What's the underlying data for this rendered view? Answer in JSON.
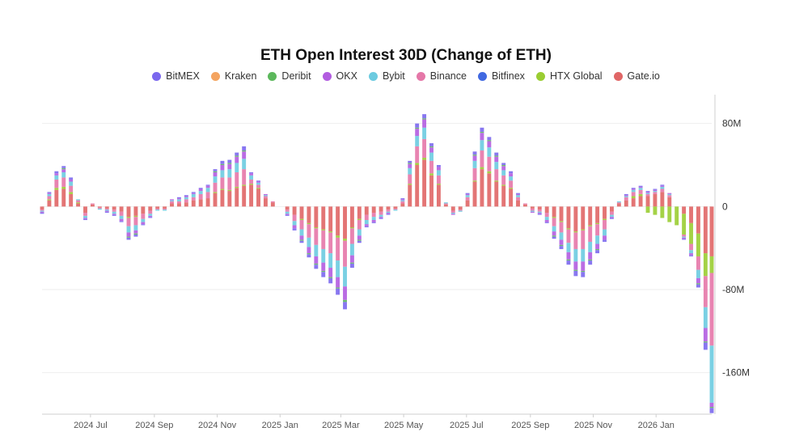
{
  "chart_data": {
    "type": "bar",
    "stacked": true,
    "title": "ETH Open Interest 30D (Change of ETH)",
    "legend_position": "top-center",
    "grid": true,
    "y_axis": {
      "position": "right",
      "ylim": [
        -200000000,
        100000000
      ],
      "ticks": [
        80000000,
        0,
        -80000000,
        -160000000
      ],
      "tick_labels": [
        "80M",
        "0",
        "-80M",
        "-160M"
      ]
    },
    "x_axis": {
      "type": "date",
      "range": [
        "2024-05-15",
        "2026-02-24"
      ],
      "ticks": [
        "2024-07-01",
        "2024-09-01",
        "2024-11-01",
        "2025-01-01",
        "2025-03-01",
        "2025-05-01",
        "2025-07-01",
        "2025-09-01",
        "2025-11-01",
        "2026-01-01"
      ],
      "tick_labels": [
        "2024 Jul",
        "2024 Sep",
        "2024 Nov",
        "2025 Jan",
        "2025 Mar",
        "2025 May",
        "2025 Jul",
        "2025 Sep",
        "2025 Nov",
        "2026 Jan"
      ]
    },
    "series_order": [
      "Gate.io",
      "HTX Global",
      "Bitfinex",
      "Binance",
      "Bybit",
      "OKX",
      "Deribit",
      "Kraken",
      "BitMEX"
    ],
    "legend": [
      "BitMEX",
      "Kraken",
      "Deribit",
      "OKX",
      "Bybit",
      "Binance",
      "Bitfinex",
      "HTX Global",
      "Gate.io"
    ],
    "colors": {
      "BitMEX": "#7b68ee",
      "Kraken": "#f4a460",
      "Deribit": "#5cb85c",
      "OKX": "#b25ce0",
      "Bybit": "#6ccbe0",
      "Binance": "#e577a8",
      "Bitfinex": "#4169e1",
      "HTX Global": "#9acd32",
      "Gate.io": "#e06666"
    },
    "x": [
      "2024-05-15",
      "2024-05-22",
      "2024-05-29",
      "2024-06-05",
      "2024-06-12",
      "2024-06-19",
      "2024-06-26",
      "2024-07-03",
      "2024-07-10",
      "2024-07-17",
      "2024-07-24",
      "2024-07-31",
      "2024-08-07",
      "2024-08-14",
      "2024-08-21",
      "2024-08-28",
      "2024-09-04",
      "2024-09-11",
      "2024-09-18",
      "2024-09-25",
      "2024-10-02",
      "2024-10-09",
      "2024-10-16",
      "2024-10-23",
      "2024-10-30",
      "2024-11-06",
      "2024-11-13",
      "2024-11-20",
      "2024-11-27",
      "2024-12-04",
      "2024-12-11",
      "2024-12-18",
      "2024-12-25",
      "2025-01-01",
      "2025-01-08",
      "2025-01-15",
      "2025-01-22",
      "2025-01-29",
      "2025-02-05",
      "2025-02-12",
      "2025-02-19",
      "2025-02-26",
      "2025-03-05",
      "2025-03-12",
      "2025-03-19",
      "2025-03-26",
      "2025-04-02",
      "2025-04-09",
      "2025-04-16",
      "2025-04-23",
      "2025-04-30",
      "2025-05-07",
      "2025-05-14",
      "2025-05-21",
      "2025-05-28",
      "2025-06-04",
      "2025-06-11",
      "2025-06-18",
      "2025-06-25",
      "2025-07-02",
      "2025-07-09",
      "2025-07-16",
      "2025-07-23",
      "2025-07-30",
      "2025-08-06",
      "2025-08-13",
      "2025-08-20",
      "2025-08-27",
      "2025-09-03",
      "2025-09-10",
      "2025-09-17",
      "2025-09-24",
      "2025-10-01",
      "2025-10-08",
      "2025-10-15",
      "2025-10-22",
      "2025-10-29",
      "2025-11-05",
      "2025-11-12",
      "2025-11-19",
      "2025-11-26",
      "2025-12-03",
      "2025-12-10",
      "2025-12-17",
      "2025-12-24",
      "2025-12-31",
      "2026-01-07",
      "2026-01-14",
      "2026-01-21",
      "2026-01-28",
      "2026-02-04",
      "2026-02-11",
      "2026-02-18",
      "2026-02-24"
    ],
    "series": [
      {
        "name": "Gate.io",
        "values": [
          -3,
          6,
          16,
          17,
          12,
          3,
          -6,
          2,
          -1,
          -2,
          -3,
          -5,
          -10,
          -9,
          -7,
          -4,
          -2,
          -2,
          3,
          3,
          4,
          6,
          7,
          8,
          13,
          16,
          15,
          18,
          20,
          21,
          17,
          8,
          4,
          0,
          -3,
          -8,
          -12,
          -16,
          -20,
          -22,
          -24,
          -28,
          -31,
          -20,
          -12,
          -8,
          -6,
          -5,
          -3,
          -2,
          3,
          21,
          40,
          45,
          30,
          21,
          2,
          -4,
          -3,
          6,
          24,
          36,
          32,
          24,
          20,
          17,
          6,
          2,
          -2,
          -3,
          -6,
          -10,
          -14,
          -21,
          -24,
          -22,
          -18,
          -16,
          -12,
          -5,
          3,
          6,
          8,
          10,
          10,
          12,
          14,
          9,
          0,
          -7,
          -16,
          -26,
          -45,
          -48
        ]
      },
      {
        "name": "HTX Global",
        "values": [
          0,
          1,
          2,
          2,
          2,
          1,
          0,
          0,
          0,
          0,
          0,
          0,
          -1,
          -1,
          0,
          0,
          0,
          0,
          0,
          0,
          0,
          0,
          0,
          0,
          1,
          1,
          1,
          1,
          1,
          1,
          1,
          0,
          0,
          0,
          0,
          0,
          -1,
          -1,
          -1,
          -1,
          -1,
          -2,
          -2,
          -1,
          -1,
          0,
          0,
          0,
          0,
          0,
          0,
          1,
          2,
          2,
          2,
          1,
          0,
          0,
          0,
          0,
          1,
          2,
          2,
          1,
          1,
          1,
          0,
          0,
          0,
          0,
          0,
          -1,
          -1,
          -1,
          -1,
          -1,
          -1,
          -1,
          -1,
          0,
          0,
          0,
          2,
          2,
          -6,
          -8,
          -11,
          -15,
          -18,
          -20,
          -20,
          -22,
          -22,
          -16
        ]
      },
      {
        "name": "Bitfinex",
        "values": [
          0,
          0,
          0,
          0,
          0,
          0,
          0,
          0,
          0,
          0,
          0,
          0,
          0,
          0,
          0,
          0,
          0,
          0,
          0,
          0,
          0,
          0,
          0,
          0,
          0,
          0,
          0,
          0,
          0,
          0,
          0,
          0,
          0,
          0,
          0,
          0,
          0,
          0,
          0,
          0,
          0,
          0,
          0,
          0,
          0,
          0,
          0,
          0,
          0,
          0,
          0,
          0,
          0,
          0,
          0,
          0,
          0,
          0,
          0,
          0,
          0,
          0,
          0,
          0,
          0,
          0,
          0,
          0,
          0,
          0,
          0,
          0,
          0,
          0,
          0,
          0,
          0,
          0,
          0,
          0,
          0,
          0,
          0,
          0,
          0,
          0,
          0,
          0,
          0,
          0,
          0,
          0,
          0,
          0
        ]
      },
      {
        "name": "Binance",
        "values": [
          -1,
          3,
          8,
          9,
          6,
          2,
          -3,
          1,
          -1,
          -1,
          -2,
          -4,
          -8,
          -8,
          -5,
          -3,
          -1,
          -1,
          2,
          2,
          3,
          3,
          5,
          6,
          9,
          11,
          12,
          14,
          15,
          4,
          3,
          2,
          1,
          0,
          -2,
          -6,
          -9,
          -13,
          -16,
          -18,
          -20,
          -22,
          -25,
          -15,
          -9,
          -5,
          -4,
          -3,
          -2,
          -1,
          2,
          9,
          16,
          18,
          12,
          8,
          1,
          -2,
          -1,
          3,
          12,
          16,
          14,
          11,
          9,
          7,
          3,
          1,
          -2,
          -2,
          -4,
          -8,
          -10,
          -13,
          -16,
          -18,
          -15,
          -11,
          -9,
          -3,
          1,
          3,
          4,
          4,
          2,
          2,
          3,
          2,
          0,
          -2,
          -6,
          -13,
          -30,
          -70
        ]
      },
      {
        "name": "Bybit",
        "values": [
          -1,
          2,
          4,
          5,
          4,
          1,
          -2,
          0,
          -1,
          -1,
          -2,
          -3,
          -6,
          -5,
          -3,
          -2,
          -1,
          -1,
          1,
          2,
          2,
          3,
          3,
          4,
          6,
          7,
          8,
          9,
          10,
          4,
          2,
          1,
          0,
          0,
          -2,
          -4,
          -6,
          -9,
          -11,
          -13,
          -14,
          -16,
          -19,
          -11,
          -6,
          -4,
          -3,
          -2,
          -1,
          -1,
          1,
          6,
          10,
          11,
          8,
          5,
          1,
          -1,
          -1,
          2,
          7,
          10,
          9,
          7,
          5,
          4,
          2,
          0,
          -1,
          -1,
          -3,
          -5,
          -7,
          -9,
          -12,
          -12,
          -10,
          -8,
          -6,
          -2,
          1,
          1,
          2,
          2,
          1,
          1,
          2,
          1,
          0,
          -1,
          -3,
          -8,
          -20,
          -55
        ]
      },
      {
        "name": "OKX",
        "values": [
          -1,
          1,
          2,
          3,
          2,
          0,
          -1,
          0,
          0,
          -1,
          -1,
          -2,
          -4,
          -3,
          -2,
          -1,
          0,
          0,
          1,
          1,
          1,
          1,
          2,
          2,
          4,
          5,
          5,
          6,
          7,
          2,
          1,
          1,
          0,
          0,
          -1,
          -3,
          -4,
          -6,
          -7,
          -8,
          -9,
          -10,
          -13,
          -7,
          -4,
          -2,
          -2,
          -1,
          -1,
          0,
          1,
          4,
          7,
          8,
          5,
          3,
          0,
          -1,
          0,
          1,
          5,
          7,
          6,
          5,
          4,
          3,
          1,
          0,
          -1,
          -1,
          -2,
          -4,
          -5,
          -7,
          -8,
          -9,
          -7,
          -5,
          -4,
          -1,
          0,
          1,
          1,
          1,
          1,
          1,
          1,
          1,
          0,
          -1,
          -2,
          -5,
          -13,
          -4
        ]
      },
      {
        "name": "Deribit",
        "values": [
          0,
          0,
          0,
          1,
          0,
          0,
          0,
          0,
          0,
          0,
          0,
          0,
          -1,
          -1,
          0,
          0,
          0,
          0,
          0,
          0,
          0,
          0,
          0,
          0,
          1,
          1,
          1,
          1,
          1,
          0,
          0,
          0,
          0,
          0,
          0,
          0,
          -1,
          -1,
          -1,
          -1,
          -1,
          -1,
          -2,
          -1,
          -1,
          0,
          0,
          0,
          0,
          0,
          0,
          1,
          1,
          1,
          1,
          0,
          0,
          0,
          0,
          0,
          1,
          1,
          1,
          1,
          1,
          0,
          0,
          0,
          0,
          0,
          0,
          -1,
          -1,
          -1,
          -1,
          -1,
          -1,
          -1,
          0,
          0,
          0,
          0,
          0,
          0,
          0,
          0,
          0,
          0,
          0,
          0,
          0,
          -1,
          -1,
          -1
        ]
      },
      {
        "name": "Kraken",
        "values": [
          0,
          0,
          0,
          0,
          0,
          0,
          0,
          0,
          0,
          0,
          0,
          0,
          0,
          0,
          0,
          0,
          0,
          0,
          0,
          0,
          0,
          0,
          0,
          0,
          0,
          0,
          0,
          0,
          0,
          0,
          0,
          0,
          0,
          0,
          0,
          0,
          0,
          0,
          0,
          0,
          0,
          0,
          0,
          0,
          0,
          0,
          0,
          0,
          0,
          0,
          0,
          0,
          0,
          0,
          0,
          0,
          0,
          0,
          0,
          0,
          0,
          0,
          0,
          0,
          0,
          0,
          0,
          0,
          0,
          0,
          0,
          0,
          0,
          0,
          0,
          0,
          0,
          0,
          0,
          0,
          0,
          0,
          0,
          0,
          0,
          0,
          0,
          0,
          0,
          0,
          0,
          0,
          0,
          0
        ]
      },
      {
        "name": "BitMEX",
        "values": [
          -1,
          1,
          2,
          2,
          2,
          0,
          -1,
          0,
          0,
          -1,
          -1,
          -1,
          -2,
          -2,
          -1,
          -1,
          0,
          0,
          0,
          1,
          1,
          1,
          1,
          1,
          2,
          3,
          3,
          3,
          4,
          1,
          1,
          0,
          0,
          0,
          -1,
          -2,
          -2,
          -3,
          -4,
          -5,
          -5,
          -6,
          -7,
          -4,
          -2,
          -1,
          -1,
          -1,
          -1,
          0,
          1,
          2,
          4,
          4,
          3,
          2,
          0,
          0,
          0,
          1,
          3,
          4,
          3,
          3,
          2,
          2,
          1,
          0,
          0,
          -1,
          -1,
          -2,
          -3,
          -4,
          -5,
          -5,
          -4,
          -3,
          -2,
          -1,
          0,
          1,
          1,
          1,
          1,
          1,
          1,
          0,
          0,
          -1,
          -1,
          -3,
          -7,
          -5
        ]
      }
    ]
  }
}
